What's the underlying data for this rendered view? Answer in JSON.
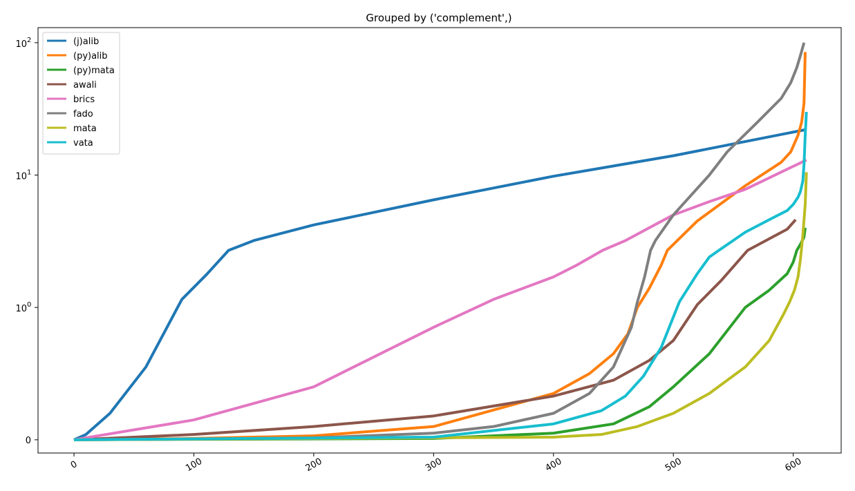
{
  "chart_data": {
    "type": "line",
    "title": "Grouped by ('complement',)",
    "xlabel": "",
    "ylabel": "",
    "yscale": "symlog",
    "xlim": [
      -30,
      640
    ],
    "ylim": [
      -0.1,
      130
    ],
    "grid": false,
    "legend_position": "top-left",
    "x_ticks": [
      {
        "value": 0,
        "label": "0"
      },
      {
        "value": 100,
        "label": "100"
      },
      {
        "value": 200,
        "label": "200"
      },
      {
        "value": 300,
        "label": "300"
      },
      {
        "value": 400,
        "label": "400"
      },
      {
        "value": 500,
        "label": "500"
      },
      {
        "value": 600,
        "label": "600"
      }
    ],
    "y_ticks": [
      {
        "value": 0,
        "label": "0",
        "exp": ""
      },
      {
        "value": 1,
        "label": "10",
        "exp": "0"
      },
      {
        "value": 10,
        "label": "10",
        "exp": "1"
      },
      {
        "value": 100,
        "label": "10",
        "exp": "2"
      }
    ],
    "series": [
      {
        "name": "(j)alib",
        "color": "#1f77b4",
        "x": [
          0,
          10,
          30,
          60,
          90,
          110,
          129,
          150,
          200,
          300,
          400,
          500,
          610
        ],
        "y": [
          0,
          0.04,
          0.2,
          0.55,
          1.15,
          1.75,
          2.7,
          3.2,
          4.2,
          6.5,
          9.8,
          14,
          22
        ]
      },
      {
        "name": "(py)alib",
        "color": "#ff7f0e",
        "x": [
          0,
          100,
          200,
          300,
          400,
          430,
          450,
          462,
          470,
          480,
          490,
          495,
          520,
          560,
          590,
          598,
          604,
          607,
          609,
          610
        ],
        "y": [
          0,
          0.01,
          0.03,
          0.1,
          0.35,
          0.5,
          0.65,
          0.8,
          1.0,
          1.4,
          2.1,
          2.7,
          4.5,
          8.3,
          12.5,
          15,
          20,
          25,
          35,
          85
        ]
      },
      {
        "name": "(py)mata",
        "color": "#2ca02c",
        "x": [
          0,
          300,
          400,
          450,
          480,
          500,
          530,
          560,
          580,
          595,
          600,
          603,
          606,
          609,
          610
        ],
        "y": [
          0,
          0.01,
          0.05,
          0.12,
          0.25,
          0.4,
          0.65,
          1.0,
          1.35,
          1.8,
          2.2,
          2.7,
          3.0,
          3.4,
          4.0
        ]
      },
      {
        "name": "awali",
        "color": "#8c564b",
        "x": [
          0,
          100,
          200,
          300,
          400,
          450,
          480,
          500,
          520,
          540,
          562,
          580,
          595,
          602
        ],
        "y": [
          0,
          0.04,
          0.1,
          0.18,
          0.33,
          0.45,
          0.6,
          0.75,
          1.05,
          1.6,
          2.7,
          3.3,
          3.9,
          4.6
        ]
      },
      {
        "name": "brics",
        "color": "#e377c2",
        "x": [
          0,
          100,
          200,
          300,
          350,
          400,
          420,
          441,
          460,
          480,
          500,
          530,
          560,
          611
        ],
        "y": [
          0,
          0.15,
          0.4,
          0.85,
          1.15,
          1.7,
          2.1,
          2.7,
          3.2,
          4.0,
          5.0,
          6.3,
          7.8,
          13
        ]
      },
      {
        "name": "fado",
        "color": "#7f7f7f",
        "x": [
          0,
          100,
          200,
          300,
          350,
          400,
          430,
          450,
          465,
          470,
          476,
          481,
          485,
          500,
          530,
          545,
          570,
          590,
          598,
          603,
          606,
          609
        ],
        "y": [
          0,
          0.005,
          0.015,
          0.05,
          0.1,
          0.2,
          0.35,
          0.55,
          0.85,
          1.1,
          1.7,
          2.7,
          3.2,
          5,
          10,
          15,
          25,
          38,
          50,
          65,
          80,
          100
        ]
      },
      {
        "name": "mata",
        "color": "#bcbd22",
        "x": [
          0,
          400,
          440,
          470,
          500,
          530,
          560,
          580,
          592,
          597,
          601,
          604,
          606,
          608,
          610,
          611
        ],
        "y": [
          0,
          0.02,
          0.04,
          0.1,
          0.2,
          0.35,
          0.55,
          0.75,
          0.95,
          1.1,
          1.35,
          1.7,
          2.3,
          3.5,
          6,
          10.5
        ]
      },
      {
        "name": "vata",
        "color": "#17becf",
        "x": [
          0,
          300,
          400,
          440,
          460,
          475,
          490,
          505,
          520,
          530,
          538,
          560,
          580,
          595,
          600,
          604,
          606,
          608,
          609,
          610,
          611
        ],
        "y": [
          0,
          0.02,
          0.12,
          0.22,
          0.33,
          0.48,
          0.7,
          1.1,
          1.8,
          2.4,
          2.7,
          3.7,
          4.6,
          5.4,
          6.0,
          6.8,
          7.5,
          9,
          12,
          20,
          30
        ]
      }
    ]
  }
}
